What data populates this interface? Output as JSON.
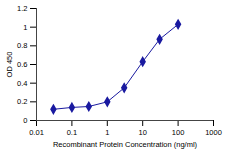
{
  "chart_data": {
    "type": "line",
    "x_label": "Recombinant Protein Concentration (ng/ml)",
    "y_label": "OD 450",
    "x": [
      0.03,
      0.1,
      0.3,
      1,
      3,
      10,
      30,
      100
    ],
    "values": [
      0.12,
      0.14,
      0.15,
      0.2,
      0.35,
      0.63,
      0.87,
      1.03
    ],
    "color": "#1a1aa0",
    "marker": "diamond",
    "log": "x",
    "xlim": [
      0.01,
      1000
    ],
    "xticks": [
      0.01,
      0.1,
      1,
      10,
      100,
      1000
    ],
    "ylim": [
      0,
      1.2
    ],
    "yticks": [
      0,
      0.2,
      0.4,
      0.6,
      0.8,
      1,
      1.2
    ],
    "grid": false
  }
}
